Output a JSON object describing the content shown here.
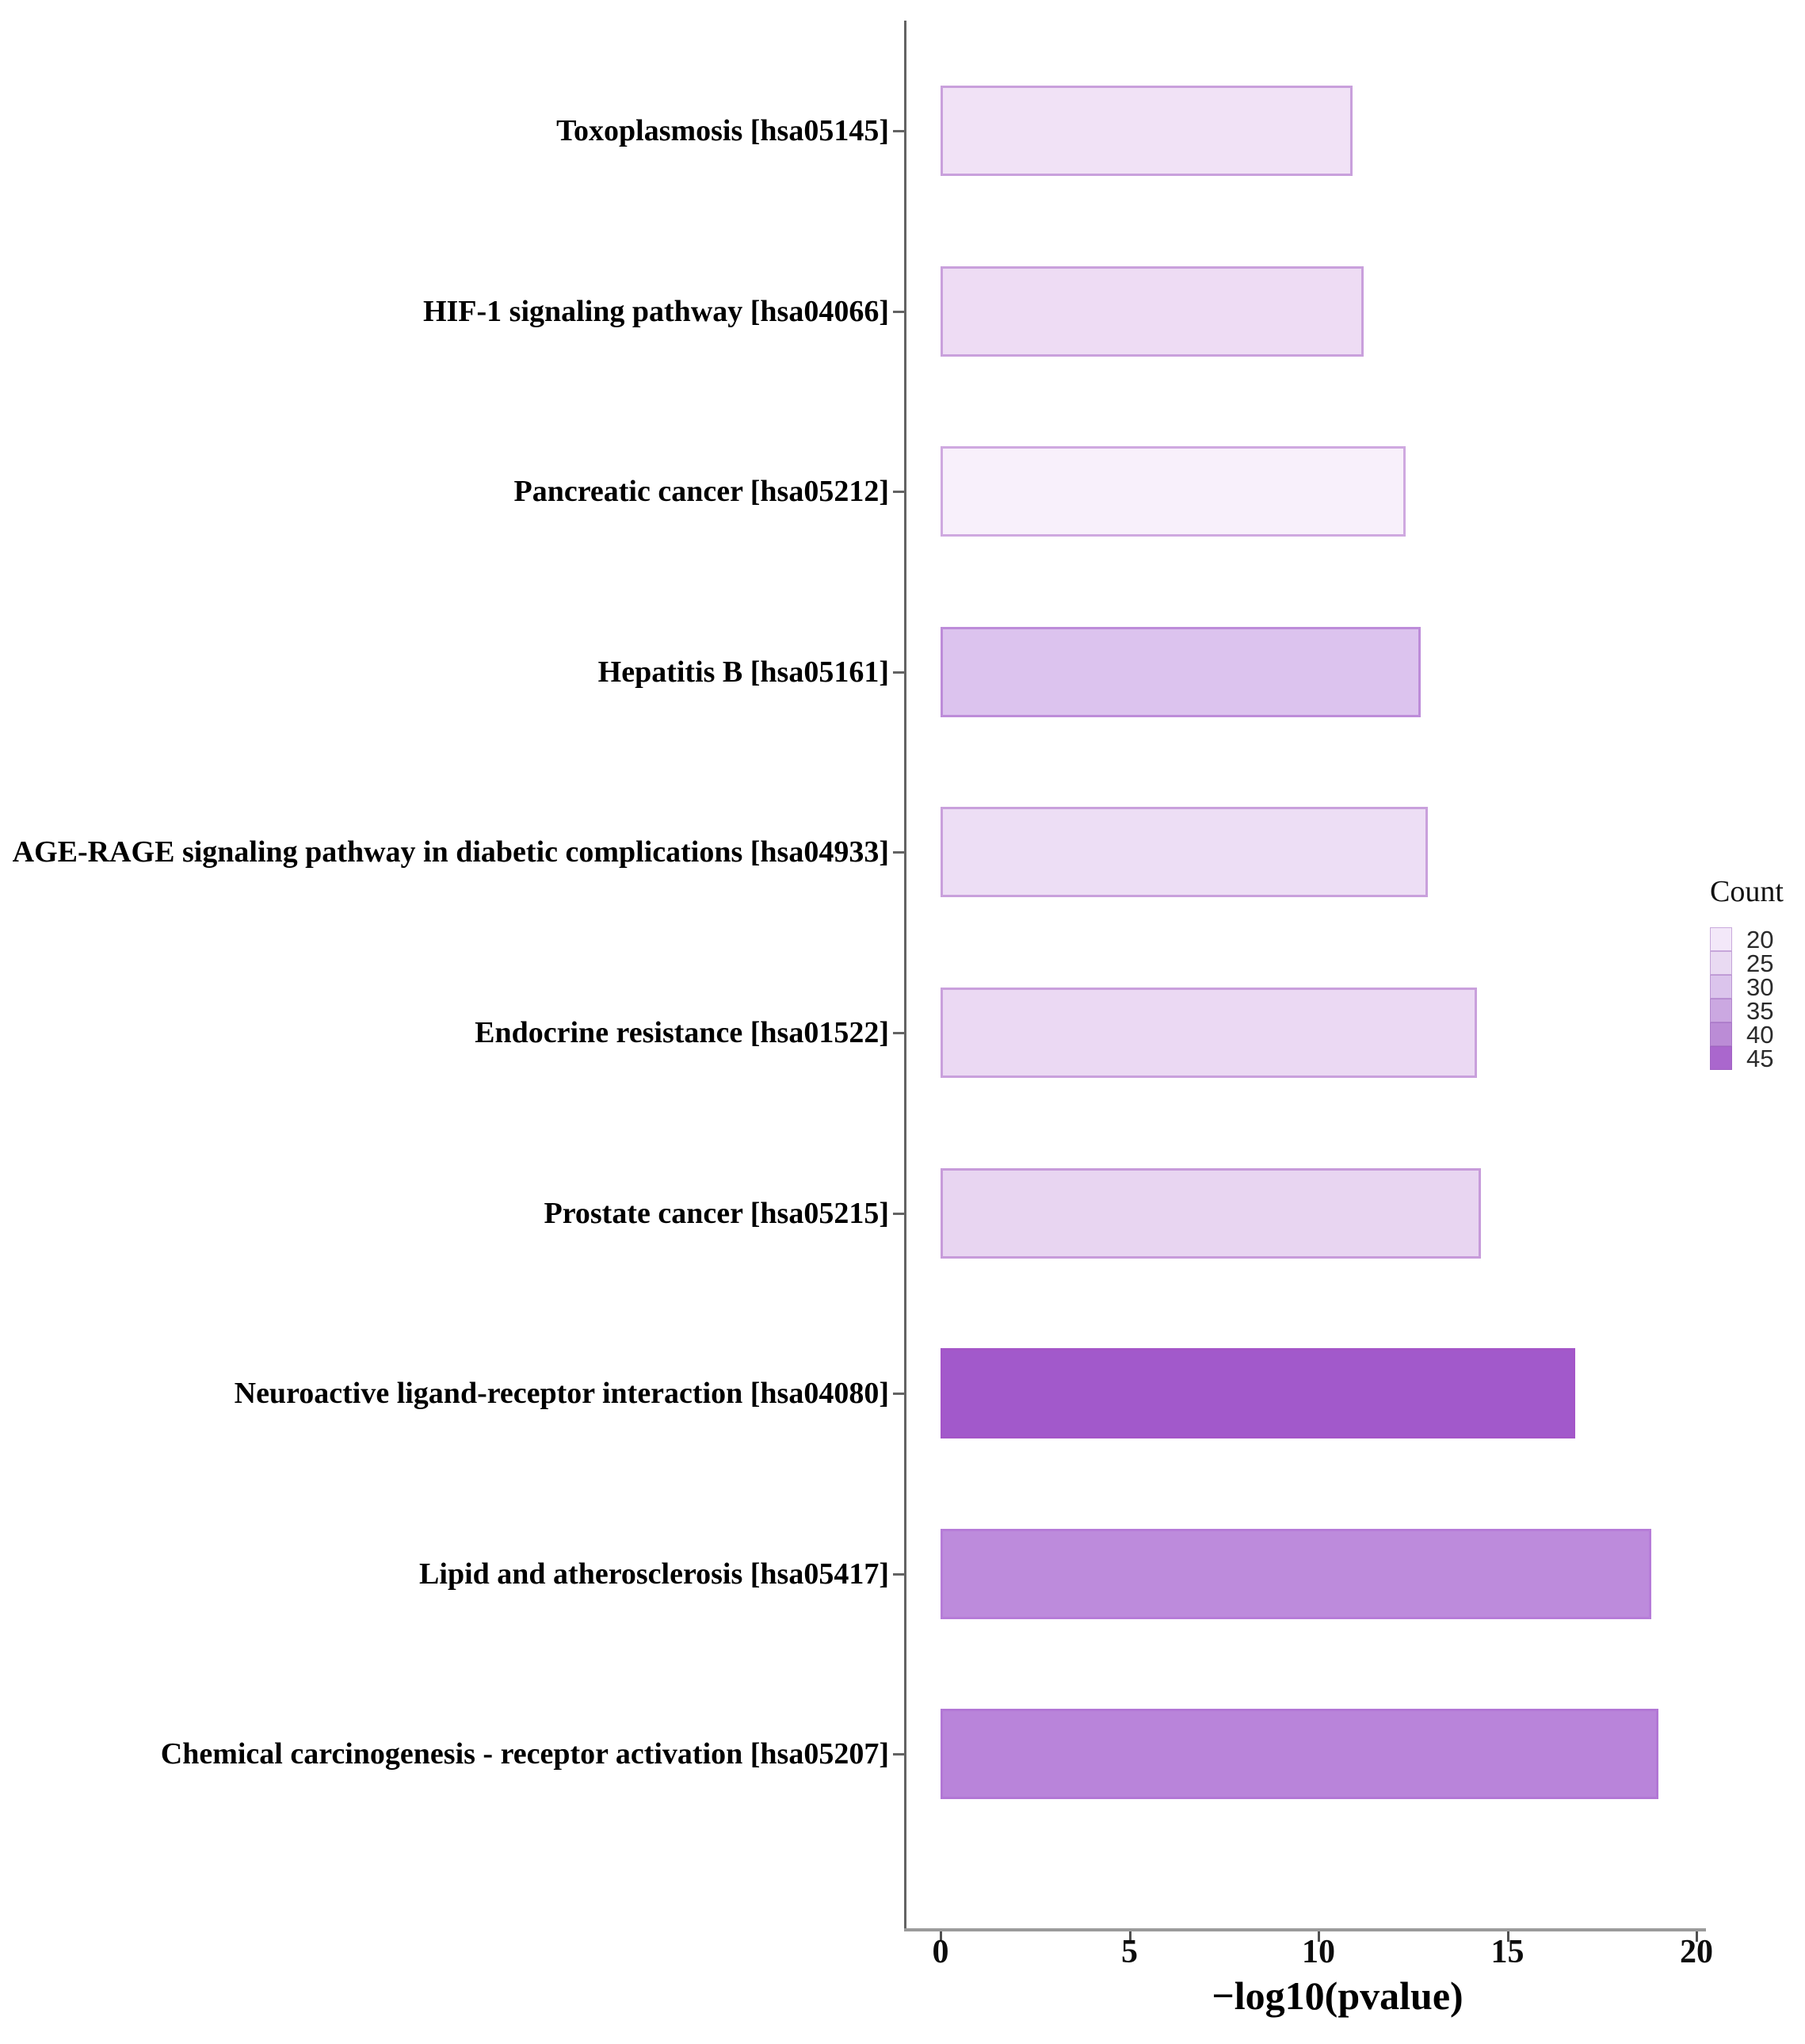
{
  "chart_data": {
    "type": "bar",
    "orientation": "horizontal",
    "title": "",
    "xlabel": "−log10(pvalue)",
    "ylabel": "",
    "xlim": [
      0,
      20
    ],
    "x_ticks": [
      0,
      5,
      10,
      15,
      20
    ],
    "grid": false,
    "categories": [
      "Toxoplasmosis [hsa05145]",
      "HIF-1 signaling pathway [hsa04066]",
      "Pancreatic cancer [hsa05212]",
      "Hepatitis B [hsa05161]",
      "AGE-RAGE signaling pathway in diabetic complications [hsa04933]",
      "Endocrine resistance [hsa01522]",
      "Prostate cancer [hsa05215]",
      "Neuroactive ligand-receptor interaction [hsa04080]",
      "Lipid and atherosclerosis [hsa05417]",
      "Chemical carcinogenesis - receptor activation [hsa05207]"
    ],
    "series": [
      {
        "name": "-log10(pvalue)",
        "values": [
          10.9,
          11.2,
          12.3,
          12.7,
          12.9,
          14.2,
          14.3,
          16.8,
          18.8,
          19.0
        ]
      }
    ],
    "bar_fill_colors": [
      "#f1e2f6",
      "#eedcf4",
      "#f8f0fb",
      "#dcc3ee",
      "#eddef5",
      "#ebd9f3",
      "#e8d5f1",
      "#a259cb",
      "#bd8bdc",
      "#b984da"
    ],
    "bar_border_colors": [
      "#c9a0dc",
      "#c9a0dc",
      "#cfa9e0",
      "#bd8cd9",
      "#c9a0dc",
      "#c9a0dc",
      "#c79bda",
      "#a456c8",
      "#b67cd8",
      "#b277d5"
    ],
    "legend": {
      "title": "Count",
      "position": "right",
      "entries": [
        {
          "label": "20",
          "color": "#f3e8f9"
        },
        {
          "label": "25",
          "color": "#e9daf2"
        },
        {
          "label": "30",
          "color": "#dbc4ec"
        },
        {
          "label": "35",
          "color": "#cba8e1"
        },
        {
          "label": "40",
          "color": "#bb8cd6"
        },
        {
          "label": "45",
          "color": "#aa67cd"
        }
      ]
    },
    "colors": {
      "background": "#ffffff",
      "y_axis_line": "#636363",
      "x_axis_line": "#9b9b9b",
      "tick_mark": "#4f4f4f",
      "text": "#000000"
    }
  }
}
